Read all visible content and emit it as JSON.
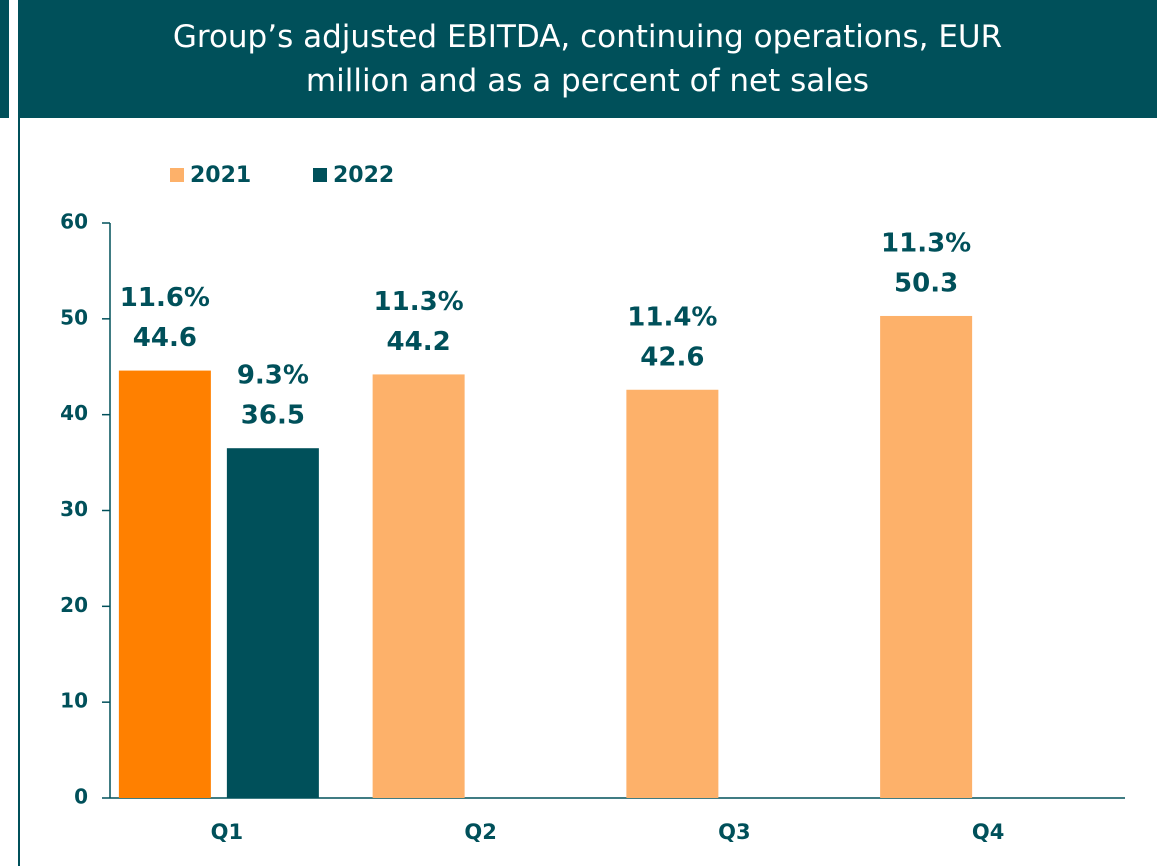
{
  "chart_data": {
    "type": "bar",
    "title": "Group’s adjusted EBITDA, continuing operations, EUR million and as a percent of net sales",
    "categories": [
      "Q1",
      "Q2",
      "Q3",
      "Q4"
    ],
    "series": [
      {
        "name": "2021",
        "color": "#fdb16a",
        "point_colors": [
          "#ff8000",
          "#fdb16a",
          "#fdb16a",
          "#fdb16a"
        ],
        "values": [
          44.6,
          44.2,
          42.6,
          50.3
        ],
        "percent_labels": [
          "11.6%",
          "11.3%",
          "11.4%",
          "11.3%"
        ]
      },
      {
        "name": "2022",
        "color": "#00505a",
        "point_colors": [
          "#00505a",
          null,
          null,
          null
        ],
        "values": [
          36.5,
          null,
          null,
          null
        ],
        "percent_labels": [
          "9.3%",
          null,
          null,
          null
        ]
      }
    ],
    "ylim": [
      0,
      60
    ],
    "yticks": [
      0,
      10,
      20,
      30,
      40,
      50,
      60
    ],
    "grid": false,
    "legend": "top-left"
  }
}
